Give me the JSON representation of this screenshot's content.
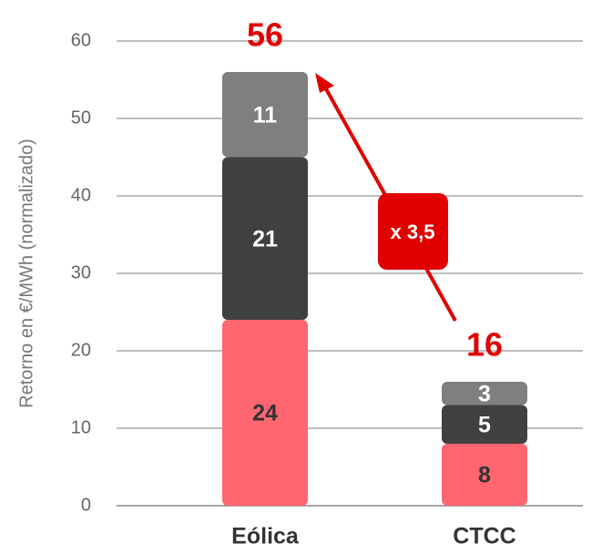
{
  "chart_data": {
    "type": "stacked_bar",
    "ylabel": "Retorno en €/MWh (normalizado)",
    "categories": [
      "Eólica",
      "CTCC"
    ],
    "series": [
      {
        "color": "#ff6670",
        "label_color": "#333333",
        "values": [
          24,
          8
        ]
      },
      {
        "color": "#404040",
        "label_color": "#ffffff",
        "values": [
          21,
          5
        ]
      },
      {
        "color": "#7f7f7f",
        "label_color": "#ffffff",
        "values": [
          11,
          3
        ]
      }
    ],
    "totals": [
      56,
      16
    ],
    "ratio_label": "x 3,5",
    "ylim": [
      0,
      60
    ],
    "yticks": [
      0,
      10,
      20,
      30,
      40,
      50,
      60
    ],
    "grid": true
  }
}
